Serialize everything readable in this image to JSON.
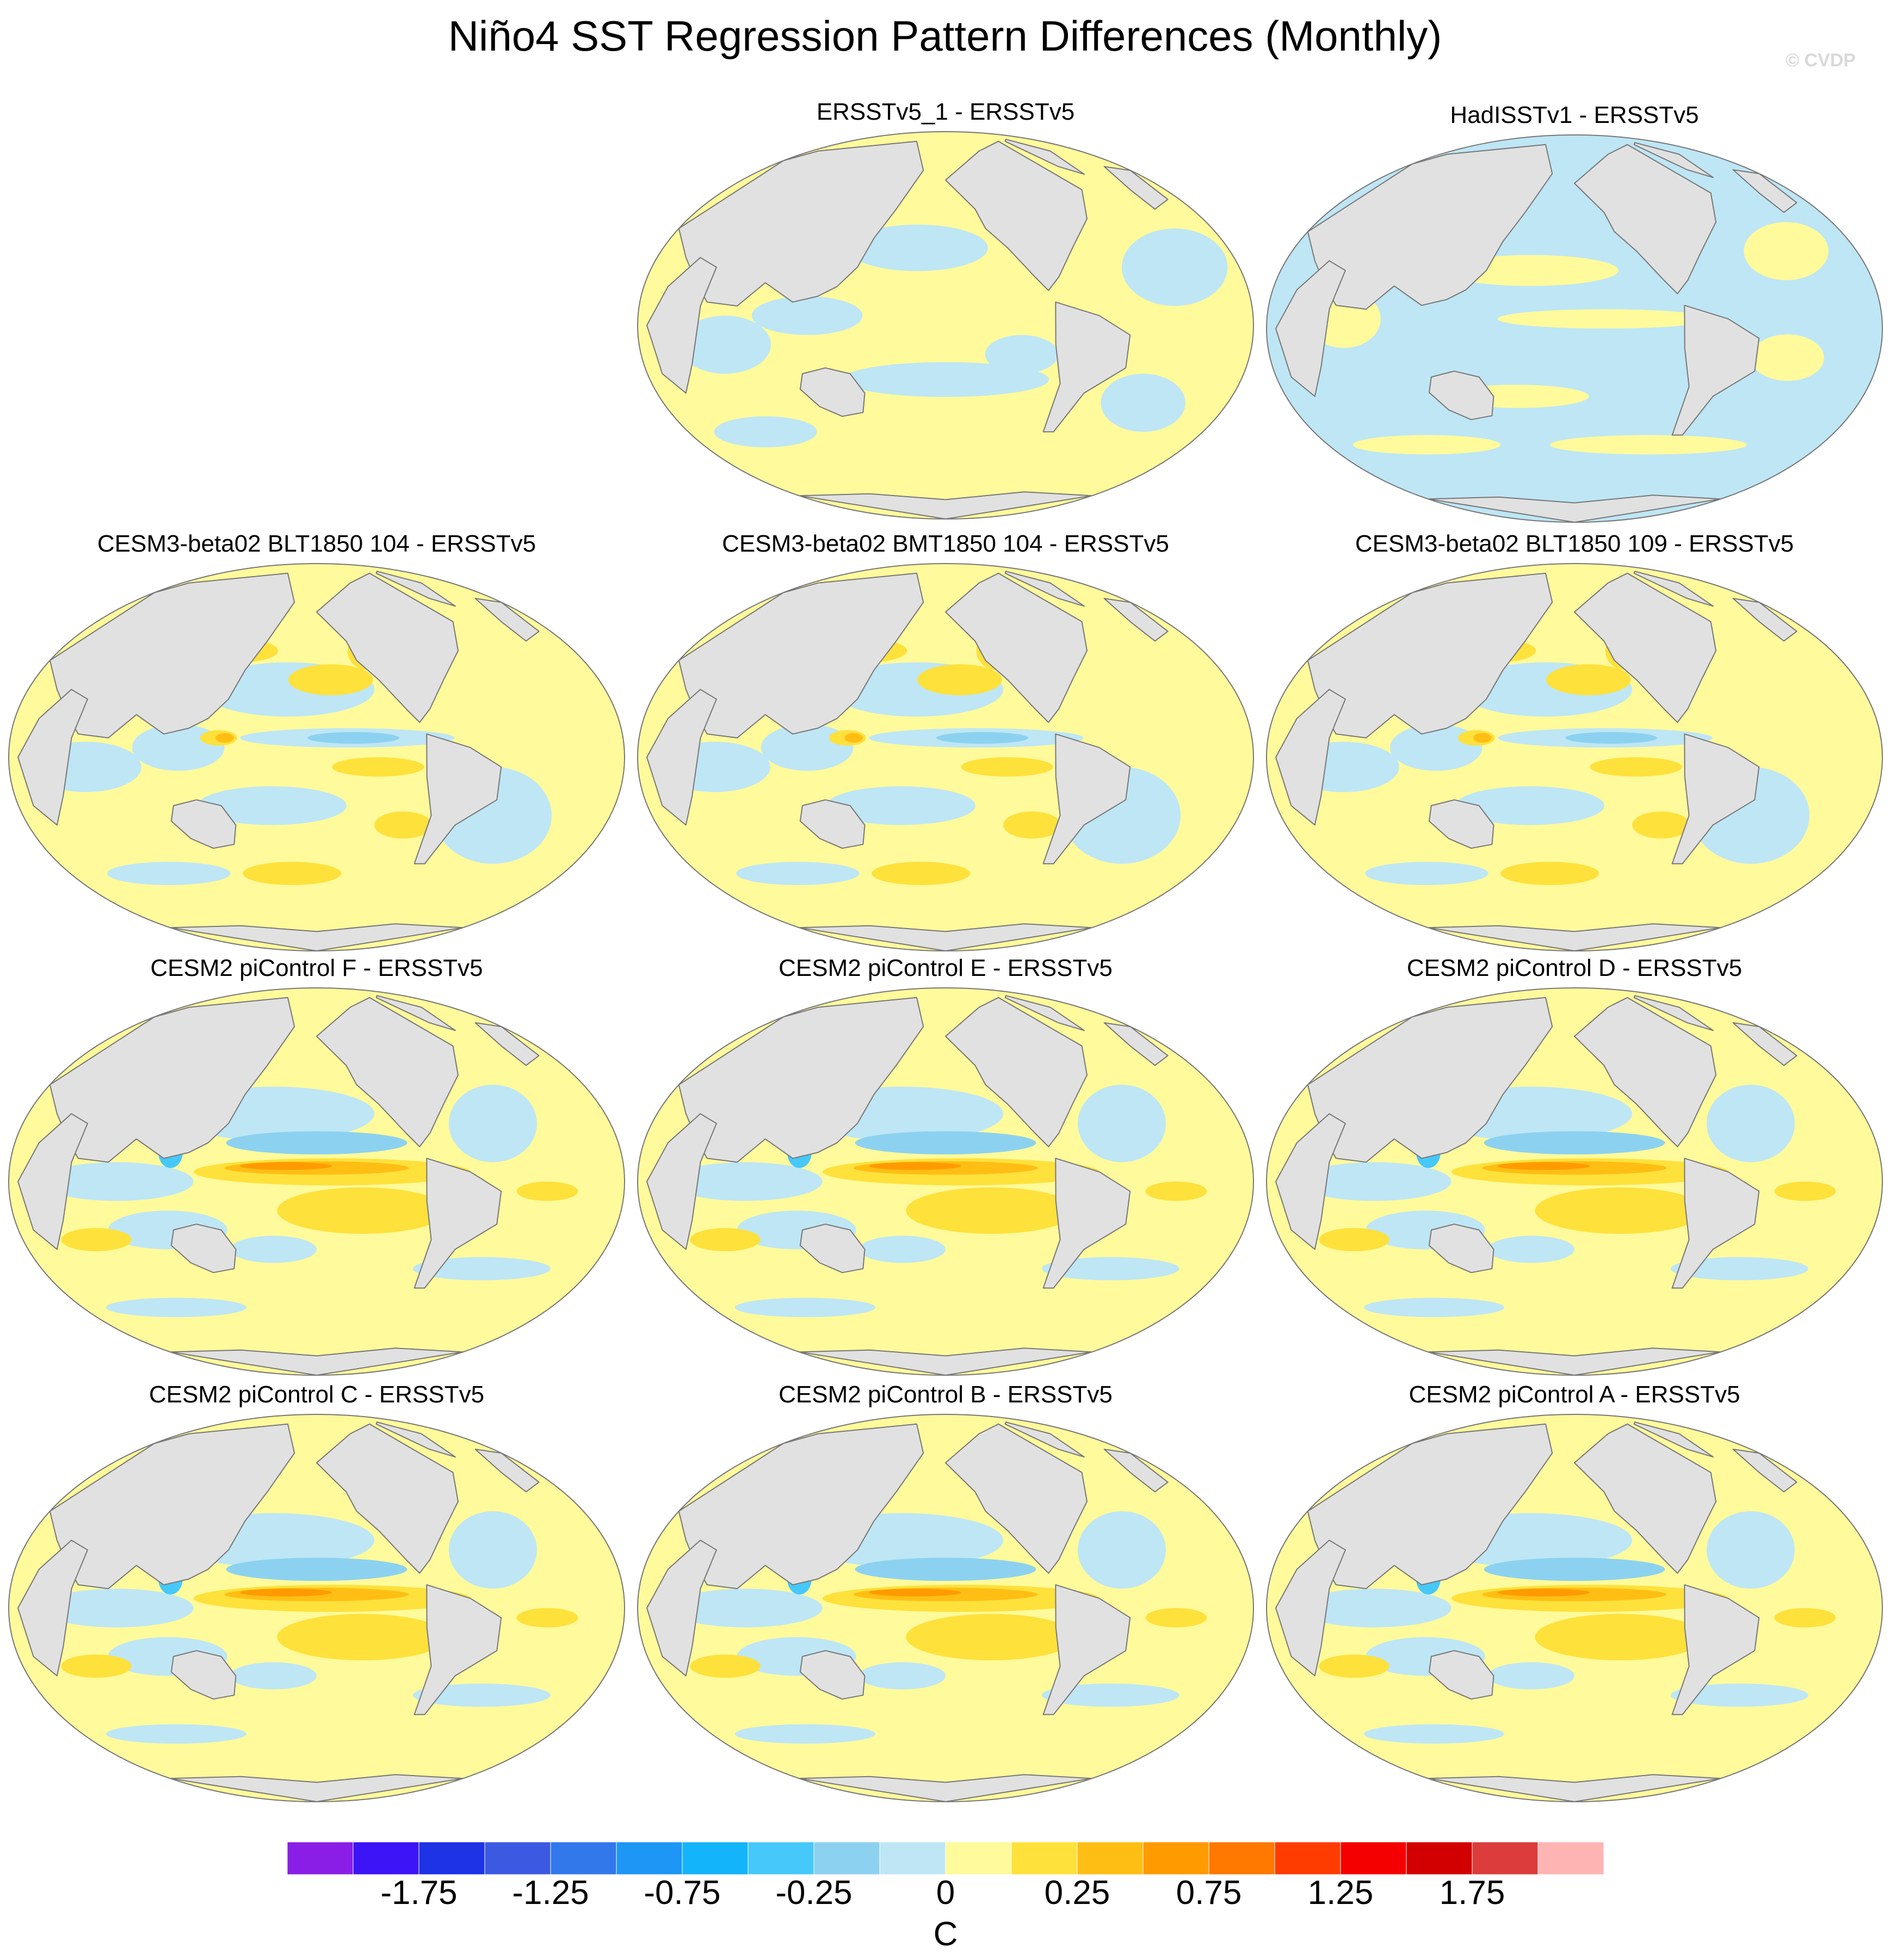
{
  "title": "Niño4 SST Regression Pattern Differences (Monthly)",
  "copyright": "© CVDP",
  "panels": [
    {
      "title": "ERSSTv5_1 - ERSSTv5",
      "pattern": "obs1"
    },
    {
      "title": "HadISSTv1 - ERSSTv5",
      "pattern": "obs2"
    },
    {
      "title": "CESM3-beta02 BLT1850 104 - ERSSTv5",
      "pattern": "beta"
    },
    {
      "title": "CESM3-beta02 BMT1850 104 - ERSSTv5",
      "pattern": "beta"
    },
    {
      "title": "CESM3-beta02 BLT1850 109 - ERSSTv5",
      "pattern": "beta"
    },
    {
      "title": "CESM2 piControl F - ERSSTv5",
      "pattern": "cesm2"
    },
    {
      "title": "CESM2 piControl E - ERSSTv5",
      "pattern": "cesm2"
    },
    {
      "title": "CESM2 piControl D - ERSSTv5",
      "pattern": "cesm2"
    },
    {
      "title": "CESM2 piControl C - ERSSTv5",
      "pattern": "cesm2"
    },
    {
      "title": "CESM2 piControl B - ERSSTv5",
      "pattern": "cesm2"
    },
    {
      "title": "CESM2 piControl A - ERSSTv5",
      "pattern": "cesm2"
    }
  ],
  "colorbar": {
    "unit": "C",
    "labels": [
      "-1.75",
      "-1.25",
      "-0.75",
      "-0.25",
      "0",
      "0.25",
      "0.75",
      "1.25",
      "1.75"
    ],
    "colors": [
      "#8a1ee6",
      "#3c14f5",
      "#1e32e6",
      "#3c5ae1",
      "#3278eb",
      "#1e96f5",
      "#14b4fa",
      "#46c8fa",
      "#8cd2f0",
      "#bee6f5",
      "#fffa9b",
      "#ffe13c",
      "#ffbe14",
      "#ff9b00",
      "#ff7800",
      "#ff3c00",
      "#f50000",
      "#d20000",
      "#dc3c3c",
      "#ffb4b4"
    ]
  },
  "colors": {
    "land": "#e1e1e1",
    "coast": "#787878",
    "weak_negative": "#bee6f5",
    "weak_positive": "#fffa9b",
    "positive": "#ffe13c",
    "strong_positive": "#ffbe14",
    "stronger_positive": "#ff9b00",
    "negative": "#8cd2f0",
    "strong_negative": "#46c8fa"
  }
}
